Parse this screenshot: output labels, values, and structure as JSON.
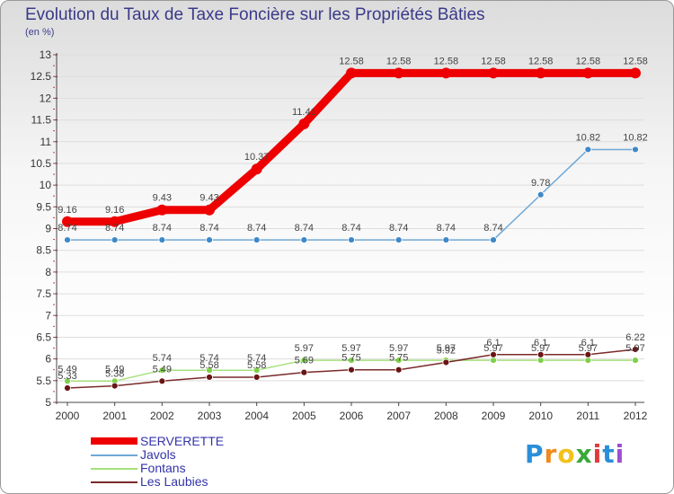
{
  "chart_data": {
    "type": "line",
    "title": "Evolution du Taux de Taxe Foncière sur les Propriétés Bâties",
    "subtitle": "(en %)",
    "x": [
      "2000",
      "2001",
      "2002",
      "2003",
      "2004",
      "2005",
      "2006",
      "2007",
      "2008",
      "2009",
      "2010",
      "2011",
      "2012"
    ],
    "ylim": [
      5,
      13
    ],
    "yticks": [
      "5",
      "5.5",
      "6",
      "6.5",
      "7",
      "7.5",
      "8",
      "8.5",
      "9",
      "9.5",
      "10",
      "10.5",
      "11",
      "11.5",
      "12",
      "12.5",
      "13"
    ],
    "series": [
      {
        "name": "SERVERETTE",
        "color": "#ee0000",
        "values": [
          9.16,
          9.16,
          9.43,
          9.43,
          10.37,
          11.41,
          12.58,
          12.58,
          12.58,
          12.58,
          12.58,
          12.58,
          12.58
        ],
        "labels": [
          "9.16",
          "9.16",
          "9.43",
          "9.43",
          "10.37",
          "11.41",
          "12.58",
          "12.58",
          "12.58",
          "12.58",
          "12.58",
          "12.58",
          "12.58"
        ]
      },
      {
        "name": "Javols",
        "color": "#6fa8d6",
        "values": [
          8.74,
          8.74,
          8.74,
          8.74,
          8.74,
          8.74,
          8.74,
          8.74,
          8.74,
          8.74,
          9.78,
          10.82,
          10.82
        ],
        "labels": [
          "8.74",
          "8.74",
          "8.74",
          "8.74",
          "8.74",
          "8.74",
          "8.74",
          "8.74",
          "8.74",
          "8.74",
          "9.78",
          "10.82",
          "10.82"
        ]
      },
      {
        "name": "Fontans",
        "color": "#a5e07a",
        "values": [
          5.49,
          5.49,
          5.74,
          5.74,
          5.74,
          5.97,
          5.97,
          5.97,
          5.97,
          5.97,
          5.97,
          5.97,
          5.97
        ],
        "labels": [
          "5.49",
          "5.49",
          "5.74",
          "5.74",
          "5.74",
          "5.97",
          "5.97",
          "5.97",
          "5.97",
          "5.97",
          "5.97",
          "5.97",
          "5.97"
        ]
      },
      {
        "name": "Les Laubies",
        "color": "#7a2a2a",
        "values": [
          5.33,
          5.38,
          5.49,
          5.58,
          5.58,
          5.69,
          5.75,
          5.75,
          5.92,
          6.1,
          6.1,
          6.1,
          6.22
        ],
        "labels": [
          "5.33",
          "5.38",
          "5.49",
          "5.58",
          "5.58",
          "5.69",
          "5.75",
          "5.75",
          "5.92",
          "6.1",
          "6.1",
          "6.1",
          "6.22"
        ]
      }
    ]
  },
  "logo": {
    "letters": [
      "P",
      "r",
      "o",
      "x",
      "i",
      "t",
      "i"
    ],
    "colors": [
      "#2a8fd8",
      "#f08a1c",
      "#f2c21b",
      "#3aa83a",
      "#e03a3a",
      "#2a8fd8",
      "#9c4fd0"
    ]
  }
}
